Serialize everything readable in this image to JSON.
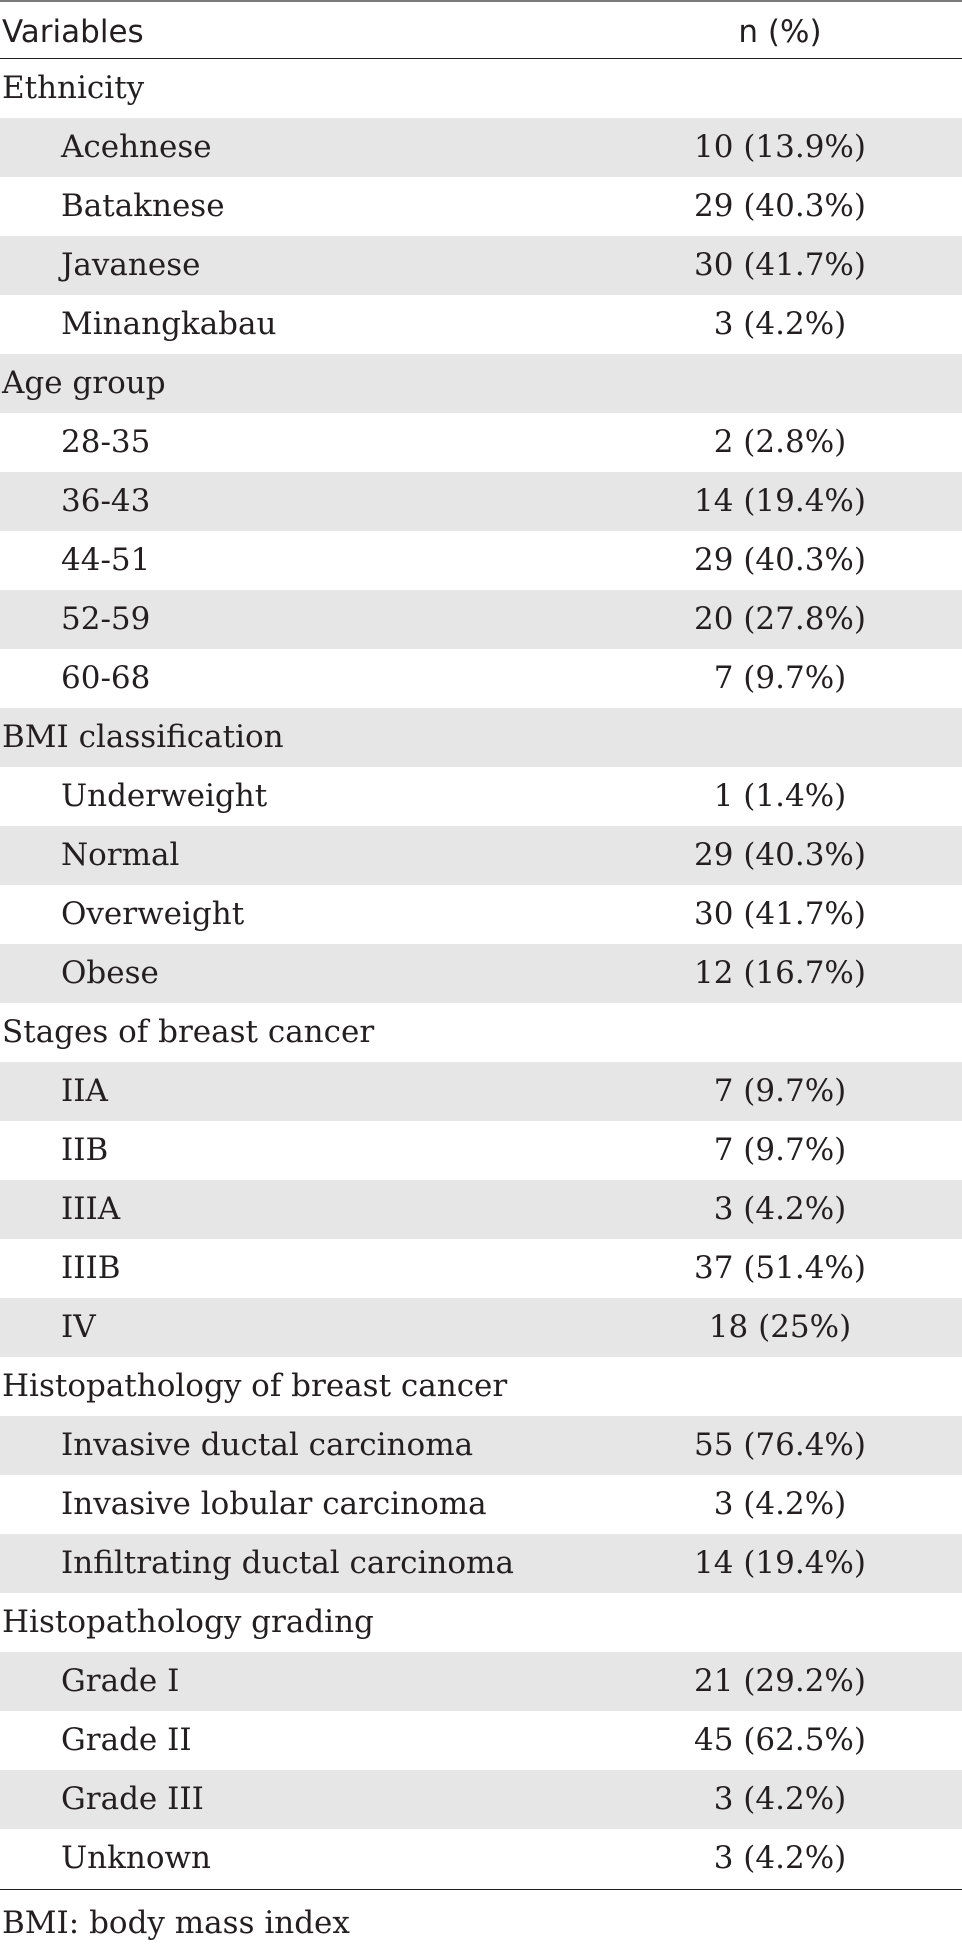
{
  "header": {
    "variables": "Variables",
    "n_percent": "n (%)"
  },
  "rows": [
    {
      "type": "group",
      "label": "Ethnicity",
      "value": ""
    },
    {
      "type": "item",
      "label": "Acehnese",
      "value": "10 (13.9%)"
    },
    {
      "type": "item",
      "label": "Bataknese",
      "value": "29 (40.3%)"
    },
    {
      "type": "item",
      "label": "Javanese",
      "value": "30 (41.7%)"
    },
    {
      "type": "item",
      "label": "Minangkabau",
      "value": "3 (4.2%)"
    },
    {
      "type": "group",
      "label": "Age group",
      "value": ""
    },
    {
      "type": "item",
      "label": "28-35",
      "value": "2 (2.8%)"
    },
    {
      "type": "item",
      "label": "36-43",
      "value": "14 (19.4%)"
    },
    {
      "type": "item",
      "label": "44-51",
      "value": "29 (40.3%)"
    },
    {
      "type": "item",
      "label": "52-59",
      "value": "20 (27.8%)"
    },
    {
      "type": "item",
      "label": "60-68",
      "value": "7 (9.7%)"
    },
    {
      "type": "group",
      "label": "BMI classification",
      "value": ""
    },
    {
      "type": "item",
      "label": "Underweight",
      "value": "1 (1.4%)"
    },
    {
      "type": "item",
      "label": "Normal",
      "value": "29 (40.3%)"
    },
    {
      "type": "item",
      "label": "Overweight",
      "value": "30 (41.7%)"
    },
    {
      "type": "item",
      "label": "Obese",
      "value": "12 (16.7%)"
    },
    {
      "type": "group",
      "label": "Stages of breast cancer",
      "value": ""
    },
    {
      "type": "item",
      "label": "IIA",
      "value": "7 (9.7%)"
    },
    {
      "type": "item",
      "label": "IIB",
      "value": "7 (9.7%)"
    },
    {
      "type": "item",
      "label": "IIIA",
      "value": "3 (4.2%)"
    },
    {
      "type": "item",
      "label": "IIIB",
      "value": "37 (51.4%)"
    },
    {
      "type": "item",
      "label": "IV",
      "value": "18 (25%)"
    },
    {
      "type": "group",
      "label": "Histopathology of breast cancer",
      "value": ""
    },
    {
      "type": "item",
      "label": "Invasive ductal carcinoma",
      "value": "55 (76.4%)"
    },
    {
      "type": "item",
      "label": "Invasive lobular carcinoma",
      "value": "3 (4.2%)"
    },
    {
      "type": "item",
      "label": "Infiltrating ductal carcinoma",
      "value": "14 (19.4%)"
    },
    {
      "type": "group",
      "label": "Histopathology grading",
      "value": ""
    },
    {
      "type": "item",
      "label": "Grade I",
      "value": "21 (29.2%)"
    },
    {
      "type": "item",
      "label": "Grade II",
      "value": "45 (62.5%)"
    },
    {
      "type": "item",
      "label": "Grade III",
      "value": "3 (4.2%)"
    },
    {
      "type": "item",
      "label": "Unknown",
      "value": "3 (4.2%)"
    }
  ],
  "footnote": "BMI: body mass index",
  "colors": {
    "shaded_row": "#e6e6e7",
    "text": "#231f20"
  }
}
